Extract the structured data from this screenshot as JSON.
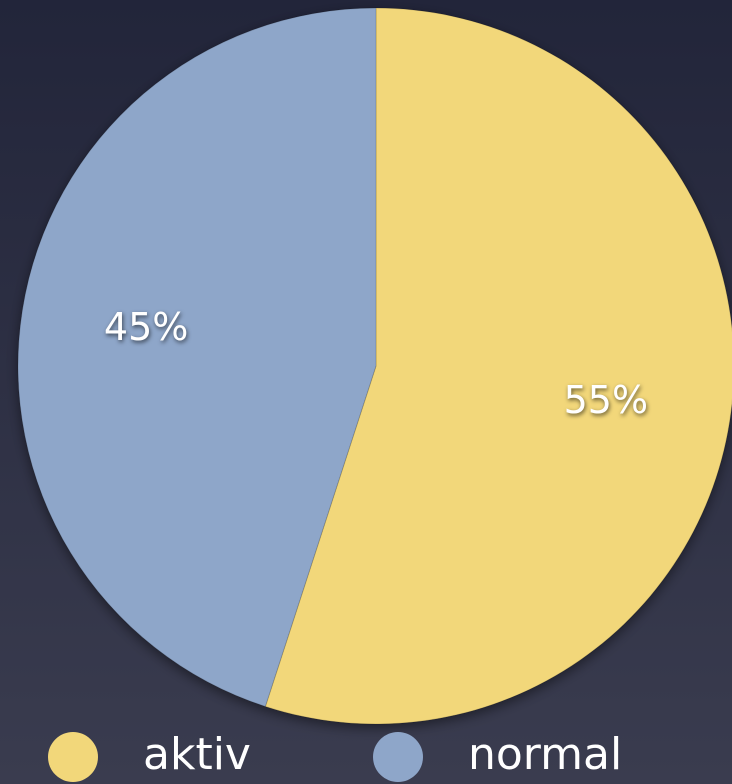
{
  "chart_data": {
    "type": "pie",
    "categories": [
      "aktiv",
      "normal"
    ],
    "values": [
      55,
      45
    ],
    "value_labels": [
      "55%",
      "45%"
    ],
    "colors": [
      "#f2d77a",
      "#8ea6c9"
    ]
  }
}
